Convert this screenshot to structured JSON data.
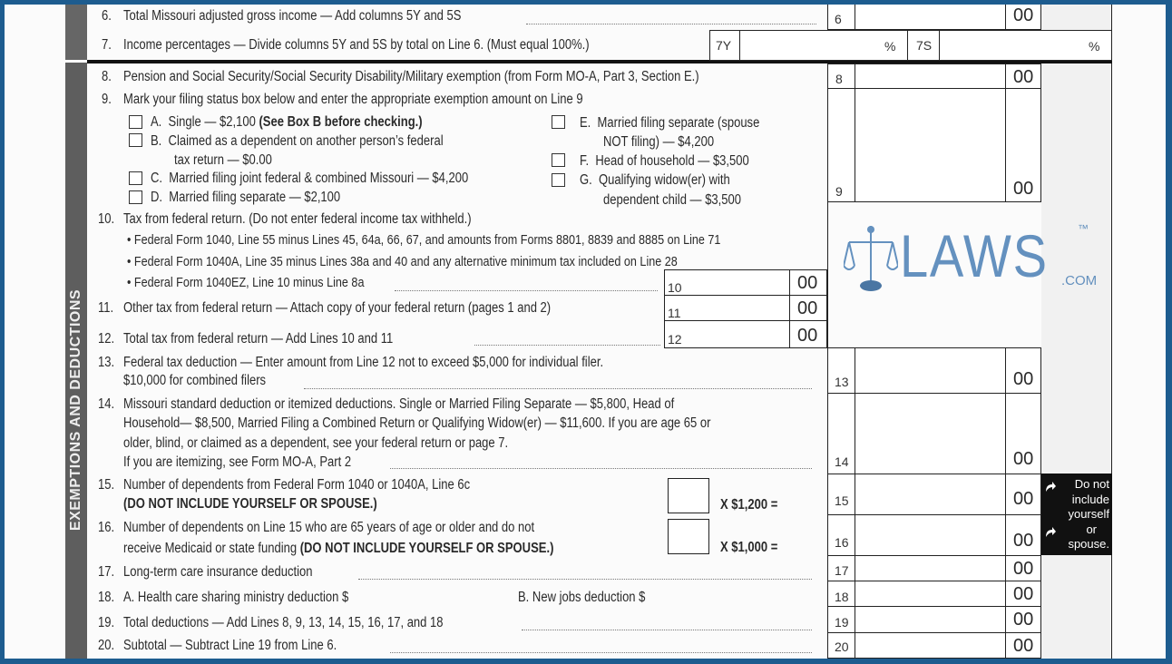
{
  "side_label": "EXEMPTIONS AND DEDUCTIONS",
  "cents": "00",
  "lines": {
    "l6": {
      "num": "6.",
      "text": "Total Missouri adjusted gross income — Add columns 5Y and 5S",
      "box": "6"
    },
    "l7": {
      "num": "7.",
      "text": "Income percentages — Divide columns 5Y and 5S by total on Line 6.  (Must equal 100%.)",
      "y_label": "7Y",
      "s_label": "7S",
      "pct": "%"
    },
    "l8": {
      "num": "8.",
      "text": "Pension and Social Security/Social Security Disability/Military exemption (from Form MO-A, Part 3, Section E.)",
      "box": "8"
    },
    "l9": {
      "num": "9.",
      "text": "Mark your filing status box below and enter the appropriate exemption amount on Line 9",
      "box": "9",
      "options": {
        "a": {
          "letter": "A.",
          "text": "Single — $2,100 ",
          "bold": "(See Box B before checking.)"
        },
        "b": {
          "letter": "B.",
          "text": "Claimed as a dependent on another person’s federal",
          "text2": "tax return — $0.00"
        },
        "c": {
          "letter": "C.",
          "text": "Married filing joint federal & combined Missouri — $4,200"
        },
        "d": {
          "letter": "D.",
          "text": "Married filing separate — $2,100"
        },
        "e": {
          "letter": "E.",
          "text": "Married filing separate (spouse",
          "text2": "NOT filing) — $4,200"
        },
        "f": {
          "letter": "F.",
          "text": "Head of household — $3,500"
        },
        "g": {
          "letter": "G.",
          "text": "Qualifying widow(er) with",
          "text2": "dependent child — $3,500"
        }
      }
    },
    "l10": {
      "num": "10.",
      "text": "Tax from federal return. (Do not enter federal income tax withheld.)",
      "box": "10",
      "bullets": [
        "• Federal Form 1040, Line 55 minus Lines 45, 64a, 66, 67, and amounts from Forms 8801, 8839 and 8885 on Line 71",
        "• Federal Form 1040A, Line 35 minus Lines 38a and 40 and any alternative minimum tax included on Line 28",
        "• Federal Form 1040EZ, Line 10 minus Line 8a"
      ]
    },
    "l11": {
      "num": "11.",
      "text": "Other tax from federal return — Attach copy of your federal return (pages 1 and 2)",
      "box": "11"
    },
    "l12": {
      "num": "12.",
      "text": "Total tax from federal return —  Add Lines 10 and 11",
      "box": "12"
    },
    "l13": {
      "num": "13.",
      "text": "Federal tax deduction — Enter amount from Line 12 not to exceed $5,000 for individual filer.",
      "text2": "$10,000 for combined filers",
      "box": "13"
    },
    "l14": {
      "num": "14.",
      "text": "Missouri standard deduction or itemized deductions.  Single or Married Filing Separate — $5,800,  Head of",
      "text2": "Household— $8,500,  Married Filing a Combined Return or Qualifying Widow(er) — $11,600. If you are age 65 or",
      "text3": "older, blind, or claimed as a dependent, see your federal return or page 7.",
      "text4": "If you are itemizing, see Form MO-A, Part 2",
      "box": "14"
    },
    "l15": {
      "num": "15.",
      "text": "Number of dependents from Federal Form 1040 or 1040A, Line 6c",
      "bold": "(DO NOT INCLUDE YOURSELF OR SPOUSE.)",
      "mult": "X $1,200 =",
      "box": "15"
    },
    "l16": {
      "num": "16.",
      "text": "Number of dependents on Line 15 who are 65 years of age or older and do not",
      "text2": "receive Medicaid or state funding ",
      "bold": "(DO NOT INCLUDE YOURSELF OR SPOUSE.)",
      "mult": "X $1,000 =",
      "box": "16"
    },
    "l17": {
      "num": "17.",
      "text": "Long-term care insurance deduction",
      "box": "17"
    },
    "l18": {
      "num": "18.",
      "text": "A. Health care sharing ministry deduction $",
      "text_b": "B. New jobs deduction $",
      "box": "18"
    },
    "l19": {
      "num": "19.",
      "text": "Total deductions — Add Lines 8, 9, 13, 14, 15, 16, 17, and 18",
      "box": "19"
    },
    "l20": {
      "num": "20.",
      "text": "Subtotal — Subtract Line 19 from Line 6.",
      "box": "20"
    }
  },
  "note": [
    "Do not",
    "include",
    "yourself",
    "or",
    "spouse."
  ],
  "watermark": {
    "brand": "LAWS",
    "tm": "™",
    "suffix": ".COM",
    "color": "#4a7fb5"
  }
}
